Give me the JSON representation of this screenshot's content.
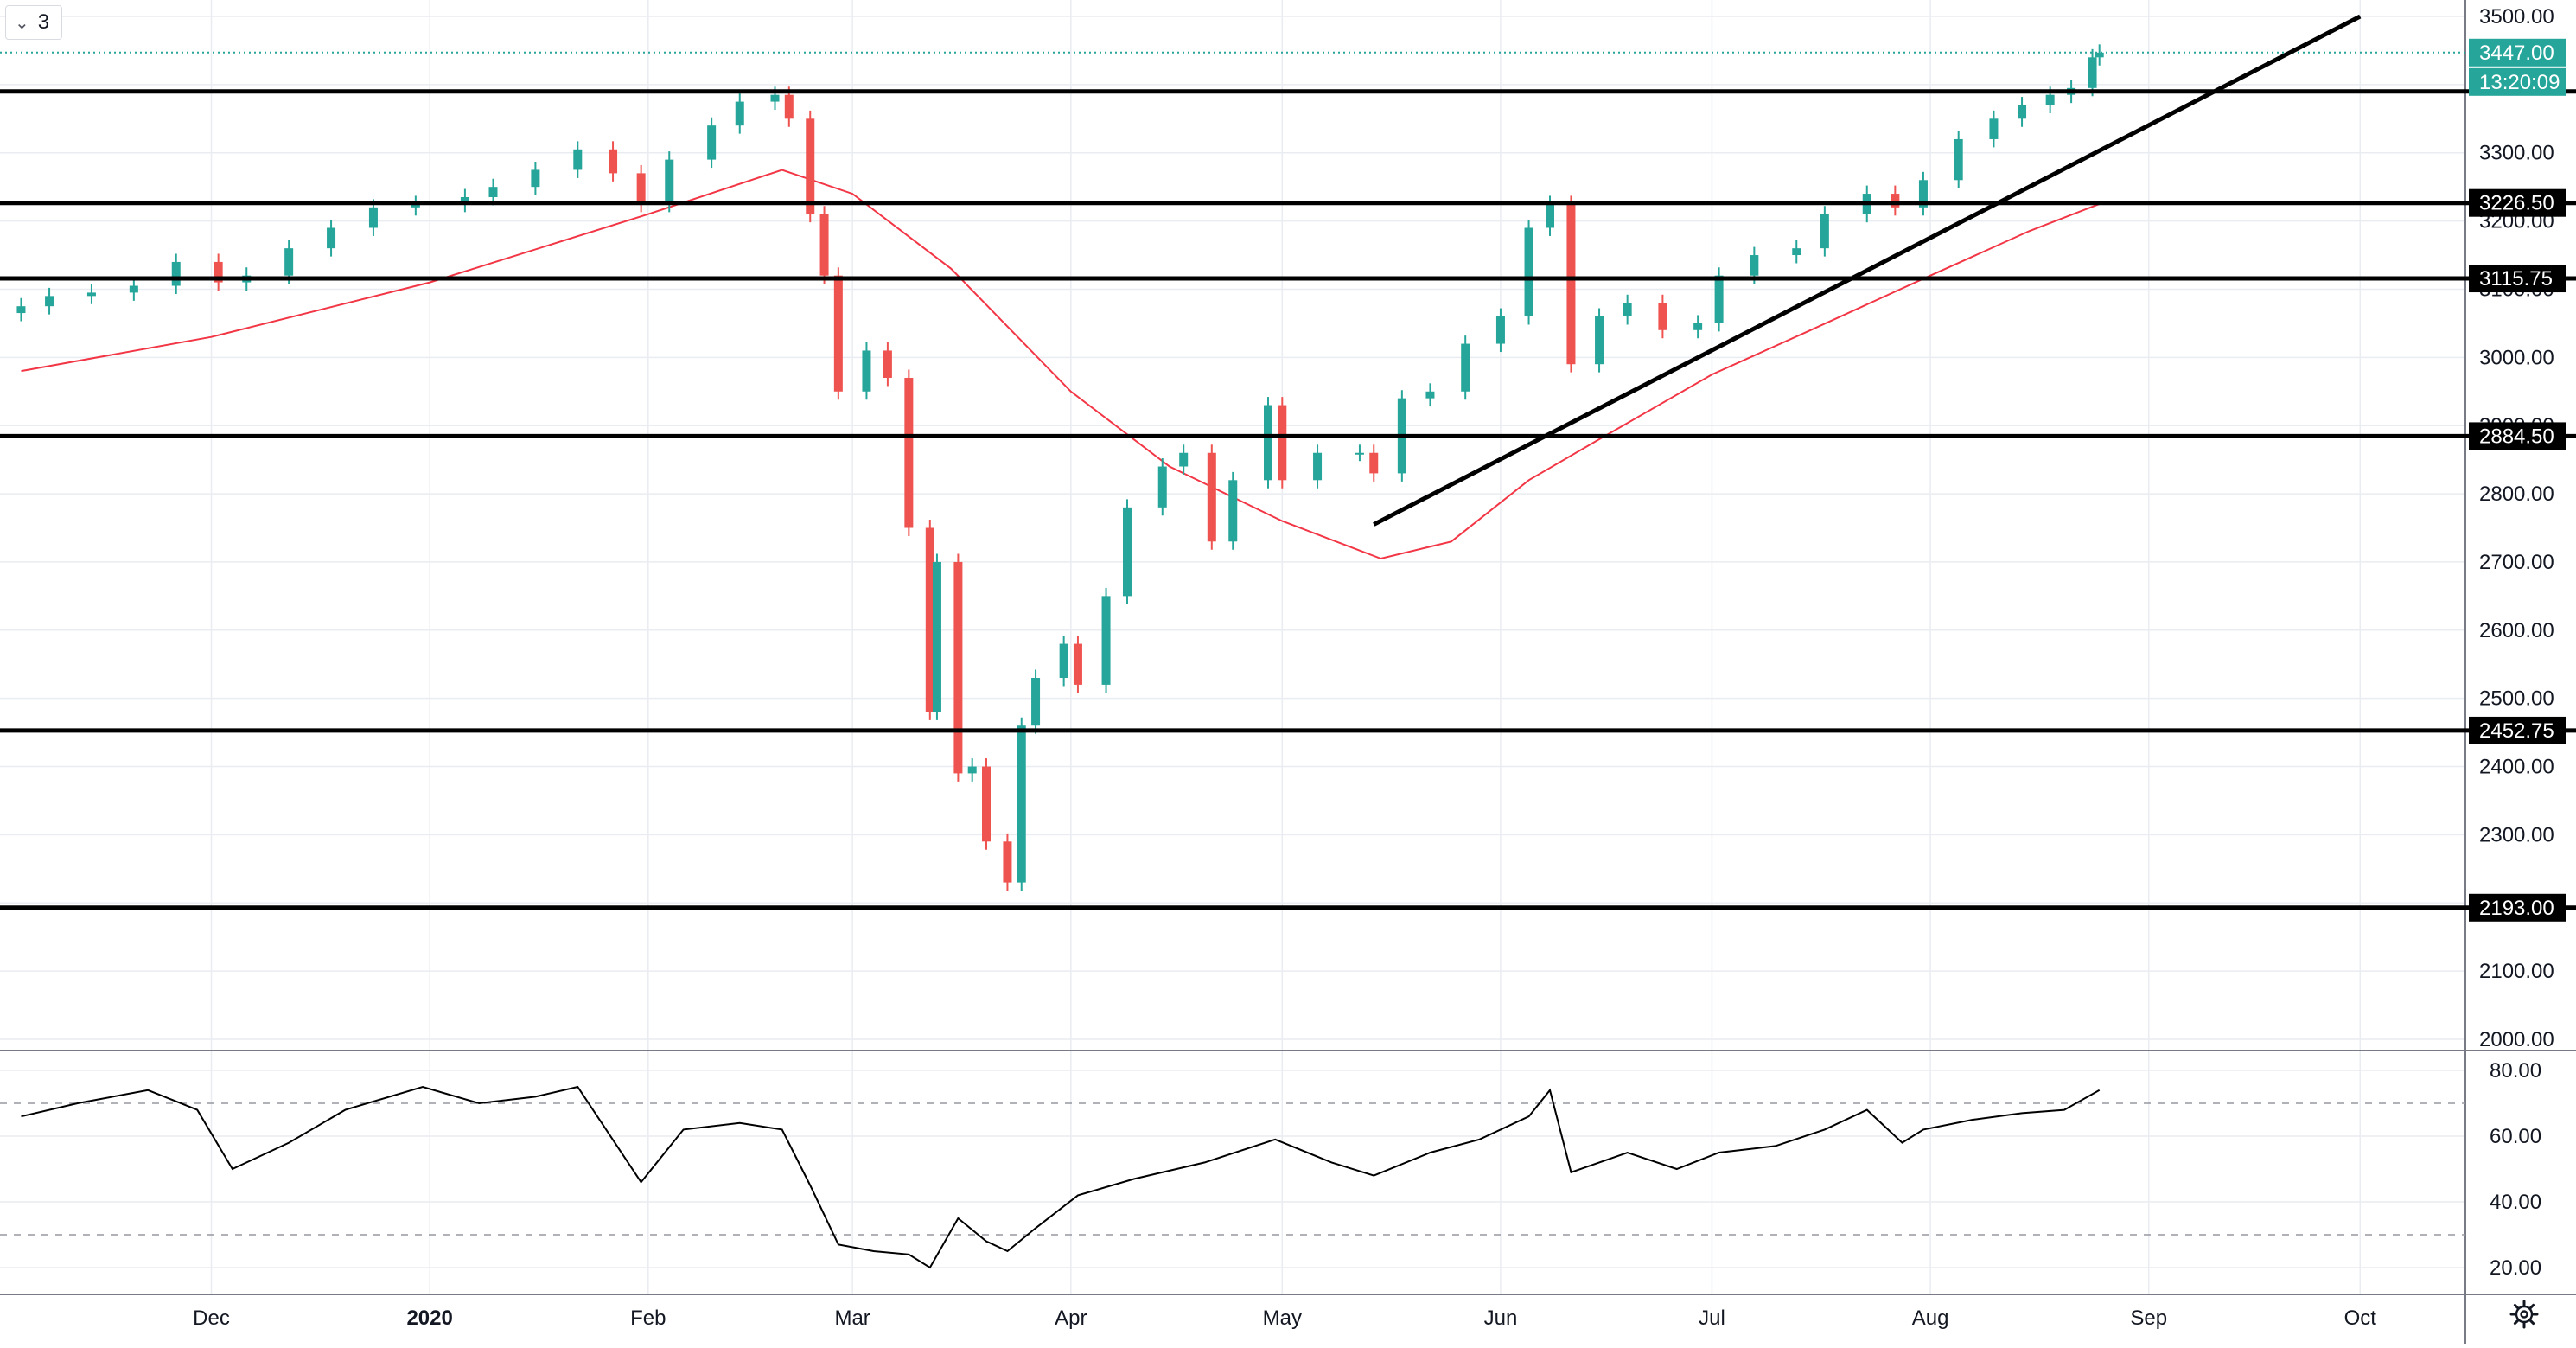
{
  "toolbar": {
    "interval_value": "3"
  },
  "chart_data": [
    {
      "type": "candlestick",
      "ylim": [
        2000,
        3500
      ],
      "y_ticks": [
        2000,
        2100,
        2200,
        2300,
        2400,
        2500,
        2600,
        2700,
        2800,
        2900,
        3000,
        3100,
        3200,
        3300,
        3400,
        3500
      ],
      "y_tick_labels": [
        "2000.00",
        "2100.00",
        "2200.00",
        "2300.00",
        "2400.00",
        "2500.00",
        "2600.00",
        "2700.00",
        "2800.00",
        "2900.00",
        "3000.00",
        "3100.00",
        "3200.00",
        "3300.00",
        "3400.00",
        "3500.00"
      ],
      "x_ticks": [
        {
          "date": "2019-12-01",
          "label": "Dec",
          "bold": false
        },
        {
          "date": "2020-01-01",
          "label": "2020",
          "bold": true
        },
        {
          "date": "2020-02-01",
          "label": "Feb",
          "bold": false
        },
        {
          "date": "2020-03-01",
          "label": "Mar",
          "bold": false
        },
        {
          "date": "2020-04-01",
          "label": "Apr",
          "bold": false
        },
        {
          "date": "2020-05-01",
          "label": "May",
          "bold": false
        },
        {
          "date": "2020-06-01",
          "label": "Jun",
          "bold": false
        },
        {
          "date": "2020-07-01",
          "label": "Jul",
          "bold": false
        },
        {
          "date": "2020-08-01",
          "label": "Aug",
          "bold": false
        },
        {
          "date": "2020-09-01",
          "label": "Sep",
          "bold": false
        },
        {
          "date": "2020-10-01",
          "label": "Oct",
          "bold": false
        }
      ],
      "close_series": [
        [
          "2019-11-04",
          3075
        ],
        [
          "2019-11-08",
          3090
        ],
        [
          "2019-11-14",
          3095
        ],
        [
          "2019-11-20",
          3105
        ],
        [
          "2019-11-26",
          3140
        ],
        [
          "2019-12-02",
          3110
        ],
        [
          "2019-12-06",
          3120
        ],
        [
          "2019-12-12",
          3160
        ],
        [
          "2019-12-18",
          3190
        ],
        [
          "2019-12-24",
          3220
        ],
        [
          "2019-12-30",
          3225
        ],
        [
          "2020-01-06",
          3235
        ],
        [
          "2020-01-10",
          3250
        ],
        [
          "2020-01-16",
          3275
        ],
        [
          "2020-01-22",
          3305
        ],
        [
          "2020-01-27",
          3270
        ],
        [
          "2020-01-31",
          3225
        ],
        [
          "2020-02-04",
          3290
        ],
        [
          "2020-02-10",
          3340
        ],
        [
          "2020-02-14",
          3375
        ],
        [
          "2020-02-19",
          3385
        ],
        [
          "2020-02-21",
          3350
        ],
        [
          "2020-02-24",
          3210
        ],
        [
          "2020-02-26",
          3120
        ],
        [
          "2020-02-28",
          2950
        ],
        [
          "2020-03-03",
          3010
        ],
        [
          "2020-03-06",
          2970
        ],
        [
          "2020-03-09",
          2750
        ],
        [
          "2020-03-12",
          2480
        ],
        [
          "2020-03-13",
          2700
        ],
        [
          "2020-03-16",
          2390
        ],
        [
          "2020-03-18",
          2400
        ],
        [
          "2020-03-20",
          2290
        ],
        [
          "2020-03-23",
          2230
        ],
        [
          "2020-03-25",
          2460
        ],
        [
          "2020-03-27",
          2530
        ],
        [
          "2020-03-31",
          2580
        ],
        [
          "2020-04-02",
          2520
        ],
        [
          "2020-04-06",
          2650
        ],
        [
          "2020-04-09",
          2780
        ],
        [
          "2020-04-14",
          2840
        ],
        [
          "2020-04-17",
          2860
        ],
        [
          "2020-04-21",
          2730
        ],
        [
          "2020-04-24",
          2820
        ],
        [
          "2020-04-29",
          2930
        ],
        [
          "2020-05-01",
          2820
        ],
        [
          "2020-05-06",
          2860
        ],
        [
          "2020-05-12",
          2860
        ],
        [
          "2020-05-14",
          2830
        ],
        [
          "2020-05-18",
          2940
        ],
        [
          "2020-05-22",
          2950
        ],
        [
          "2020-05-27",
          3020
        ],
        [
          "2020-06-01",
          3060
        ],
        [
          "2020-06-05",
          3190
        ],
        [
          "2020-06-08",
          3225
        ],
        [
          "2020-06-11",
          2990
        ],
        [
          "2020-06-15",
          3060
        ],
        [
          "2020-06-19",
          3080
        ],
        [
          "2020-06-24",
          3040
        ],
        [
          "2020-06-29",
          3050
        ],
        [
          "2020-07-02",
          3120
        ],
        [
          "2020-07-07",
          3150
        ],
        [
          "2020-07-13",
          3160
        ],
        [
          "2020-07-17",
          3210
        ],
        [
          "2020-07-23",
          3240
        ],
        [
          "2020-07-27",
          3220
        ],
        [
          "2020-07-31",
          3260
        ],
        [
          "2020-08-05",
          3320
        ],
        [
          "2020-08-10",
          3350
        ],
        [
          "2020-08-14",
          3370
        ],
        [
          "2020-08-18",
          3385
        ],
        [
          "2020-08-21",
          3395
        ],
        [
          "2020-08-24",
          3440
        ],
        [
          "2020-08-25",
          3447
        ]
      ],
      "ma_series": [
        [
          "2019-11-04",
          2980
        ],
        [
          "2019-12-01",
          3030
        ],
        [
          "2020-01-01",
          3110
        ],
        [
          "2020-02-01",
          3210
        ],
        [
          "2020-02-20",
          3275
        ],
        [
          "2020-03-01",
          3240
        ],
        [
          "2020-03-15",
          3130
        ],
        [
          "2020-04-01",
          2950
        ],
        [
          "2020-04-15",
          2840
        ],
        [
          "2020-05-01",
          2760
        ],
        [
          "2020-05-15",
          2705
        ],
        [
          "2020-05-25",
          2730
        ],
        [
          "2020-06-05",
          2820
        ],
        [
          "2020-06-15",
          2880
        ],
        [
          "2020-07-01",
          2975
        ],
        [
          "2020-07-15",
          3040
        ],
        [
          "2020-08-01",
          3120
        ],
        [
          "2020-08-15",
          3185
        ],
        [
          "2020-08-25",
          3225
        ]
      ],
      "horizontal_levels": [
        {
          "value": 3447.0,
          "label": "3447.00",
          "style": "dotted-accent"
        },
        {
          "value": 3390.0,
          "label": "",
          "style": "line"
        },
        {
          "value": 3226.5,
          "label": "3226.50",
          "style": "line"
        },
        {
          "value": 3115.75,
          "label": "3115.75",
          "style": "line"
        },
        {
          "value": 2884.5,
          "label": "2884.50",
          "style": "line"
        },
        {
          "value": 2452.75,
          "label": "2452.75",
          "style": "line"
        },
        {
          "value": 2193.0,
          "label": "2193.00",
          "style": "line"
        }
      ],
      "trendline": {
        "start": [
          "2020-05-14",
          2755
        ],
        "end": [
          "2020-10-01",
          3500
        ]
      },
      "last_price_label": "3447.00",
      "countdown_label": "13:20:09",
      "colors": {
        "up": "#26a69a",
        "down": "#ef5350",
        "ma": "#f23645",
        "accent": "#26a69a",
        "lines": "#000000",
        "grid": "#e9ecf1",
        "axis_text": "#131722"
      }
    },
    {
      "type": "line",
      "ylim": [
        15,
        85
      ],
      "y_ticks": [
        20,
        40,
        60,
        80
      ],
      "y_tick_labels": [
        "20.00",
        "40.00",
        "60.00",
        "80.00"
      ],
      "bands": [
        30,
        70
      ],
      "series": [
        {
          "values": [
            [
              "2019-11-04",
              66
            ],
            [
              "2019-11-12",
              70
            ],
            [
              "2019-11-22",
              74
            ],
            [
              "2019-11-29",
              68
            ],
            [
              "2019-12-04",
              50
            ],
            [
              "2019-12-12",
              58
            ],
            [
              "2019-12-20",
              68
            ],
            [
              "2019-12-31",
              75
            ],
            [
              "2020-01-08",
              70
            ],
            [
              "2020-01-16",
              72
            ],
            [
              "2020-01-22",
              75
            ],
            [
              "2020-01-31",
              46
            ],
            [
              "2020-02-06",
              62
            ],
            [
              "2020-02-14",
              64
            ],
            [
              "2020-02-20",
              62
            ],
            [
              "2020-02-24",
              45
            ],
            [
              "2020-02-28",
              27
            ],
            [
              "2020-03-04",
              25
            ],
            [
              "2020-03-09",
              24
            ],
            [
              "2020-03-12",
              20
            ],
            [
              "2020-03-16",
              35
            ],
            [
              "2020-03-20",
              28
            ],
            [
              "2020-03-23",
              25
            ],
            [
              "2020-03-27",
              32
            ],
            [
              "2020-04-02",
              42
            ],
            [
              "2020-04-10",
              47
            ],
            [
              "2020-04-20",
              52
            ],
            [
              "2020-04-30",
              59
            ],
            [
              "2020-05-08",
              52
            ],
            [
              "2020-05-14",
              48
            ],
            [
              "2020-05-22",
              55
            ],
            [
              "2020-05-29",
              59
            ],
            [
              "2020-06-05",
              66
            ],
            [
              "2020-06-08",
              74
            ],
            [
              "2020-06-11",
              49
            ],
            [
              "2020-06-19",
              55
            ],
            [
              "2020-06-26",
              50
            ],
            [
              "2020-07-02",
              55
            ],
            [
              "2020-07-10",
              57
            ],
            [
              "2020-07-17",
              62
            ],
            [
              "2020-07-23",
              68
            ],
            [
              "2020-07-28",
              58
            ],
            [
              "2020-07-31",
              62
            ],
            [
              "2020-08-07",
              65
            ],
            [
              "2020-08-14",
              67
            ],
            [
              "2020-08-20",
              68
            ],
            [
              "2020-08-25",
              74
            ]
          ]
        }
      ]
    }
  ]
}
